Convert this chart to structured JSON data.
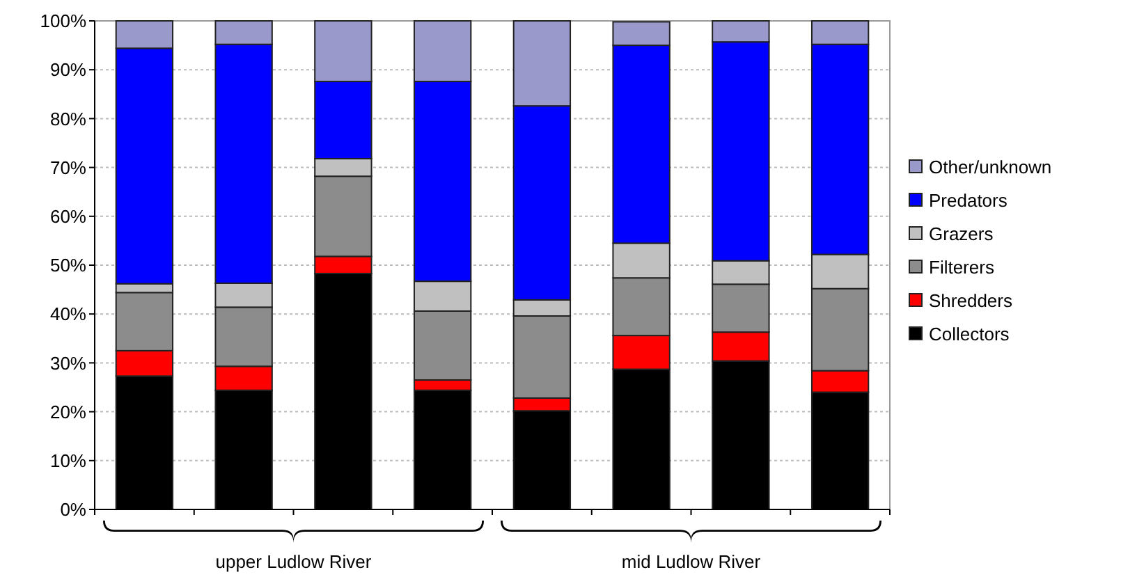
{
  "chart_data": {
    "type": "bar",
    "stacked": true,
    "categories": [
      null,
      null,
      null,
      null,
      null,
      null,
      null,
      null
    ],
    "series": [
      {
        "name": "Collectors",
        "color": "#000000",
        "values": [
          27.3,
          24.4,
          48.3,
          24.4,
          20.2,
          28.7,
          30.4,
          24.0
        ]
      },
      {
        "name": "Shredders",
        "color": "#ff0000",
        "values": [
          5.2,
          4.9,
          3.5,
          2.1,
          2.6,
          6.9,
          5.9,
          4.4
        ]
      },
      {
        "name": "Filterers",
        "color": "#8c8c8c",
        "values": [
          11.9,
          12.1,
          16.4,
          14.1,
          16.8,
          11.8,
          9.8,
          16.8
        ]
      },
      {
        "name": "Grazers",
        "color": "#c0c0c0",
        "values": [
          1.8,
          4.9,
          3.6,
          6.1,
          3.3,
          7.1,
          4.8,
          7.0
        ]
      },
      {
        "name": "Predators",
        "color": "#0000ff",
        "values": [
          48.2,
          48.9,
          15.8,
          40.9,
          39.7,
          40.5,
          44.8,
          43.0
        ]
      },
      {
        "name": "Other/unknown",
        "color": "#9999cc",
        "values": [
          5.6,
          4.8,
          12.4,
          12.4,
          17.4,
          4.8,
          4.3,
          4.8
        ]
      }
    ],
    "ylim": [
      0,
      100
    ],
    "yticks": [
      {
        "value": 0,
        "label": "0%"
      },
      {
        "value": 10,
        "label": "10%"
      },
      {
        "value": 20,
        "label": "20%"
      },
      {
        "value": 30,
        "label": "30%"
      },
      {
        "value": 40,
        "label": "40%"
      },
      {
        "value": 50,
        "label": "50%"
      },
      {
        "value": 60,
        "label": "60%"
      },
      {
        "value": 70,
        "label": "70%"
      },
      {
        "value": 80,
        "label": "80%"
      },
      {
        "value": 90,
        "label": "90%"
      },
      {
        "value": 100,
        "label": "100%"
      }
    ],
    "grid": "y",
    "legend": "right",
    "annotations": [
      "upper Ludlow River",
      "mid Ludlow River"
    ]
  }
}
